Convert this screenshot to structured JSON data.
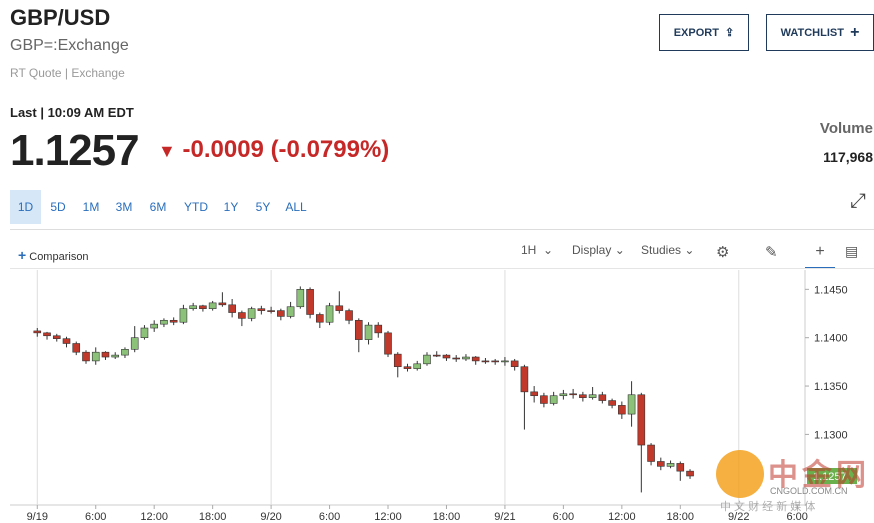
{
  "header": {
    "title": "GBP/USD",
    "symbol": "GBP=:Exchange",
    "quote_type": "RT Quote | Exchange"
  },
  "quote": {
    "last_label": "Last | 10:09 AM EDT",
    "last": 1.1257,
    "change": "-0.0009 (-0.0799%)",
    "volume_label": "Volume",
    "volume": "117,968"
  },
  "buttons": {
    "export": "EXPORT",
    "watchlist": "WATCHLIST"
  },
  "ranges": [
    "1D",
    "5D",
    "1M",
    "3M",
    "6M",
    "YTD",
    "1Y",
    "5Y",
    "ALL"
  ],
  "toolbar": {
    "comparison": "Comparison",
    "interval": "1H",
    "display": "Display",
    "studies": "Studies"
  },
  "watermark": {
    "name": "中金网",
    "site": "CNGOLD.COM.CN",
    "slogan": "中 文 财 经 新 媒 体"
  },
  "chart_data": {
    "type": "candlestick",
    "up_color": "#8cc17a",
    "down_color": "#c0392b",
    "x": [
      0,
      1,
      2,
      3,
      4,
      5,
      6,
      7,
      8,
      9,
      10,
      11,
      12,
      13,
      14,
      15,
      16,
      17,
      18,
      19,
      20,
      21,
      22,
      23,
      24,
      25,
      26,
      27,
      28,
      29,
      30,
      31,
      32,
      33,
      34,
      35,
      36,
      37,
      38,
      39,
      40,
      41,
      42,
      43,
      44,
      45,
      46,
      47,
      48,
      49,
      50,
      51,
      52,
      53,
      54,
      55,
      56,
      57,
      58,
      59,
      60,
      61,
      62,
      63,
      64,
      65,
      66,
      67
    ],
    "open": [
      1.1407,
      1.1405,
      1.1402,
      1.1399,
      1.1394,
      1.1385,
      1.1376,
      1.1385,
      1.138,
      1.1382,
      1.1388,
      1.14,
      1.141,
      1.1414,
      1.1418,
      1.1416,
      1.143,
      1.1433,
      1.143,
      1.1436,
      1.1434,
      1.1426,
      1.142,
      1.143,
      1.1428,
      1.1428,
      1.1422,
      1.1432,
      1.145,
      1.1424,
      1.1416,
      1.1433,
      1.1428,
      1.1418,
      1.1398,
      1.1413,
      1.1405,
      1.1383,
      1.137,
      1.1368,
      1.1373,
      1.1382,
      1.1382,
      1.1379,
      1.1378,
      1.138,
      1.1376,
      1.1376,
      1.1375,
      1.1376,
      1.137,
      1.1344,
      1.134,
      1.1332,
      1.134,
      1.1342,
      1.1341,
      1.1338,
      1.1341,
      1.1335,
      1.133,
      1.1321,
      1.1341,
      1.1289,
      1.1272,
      1.1267,
      1.127,
      1.1262
    ],
    "high": [
      1.141,
      1.1406,
      1.1404,
      1.1401,
      1.1396,
      1.1387,
      1.139,
      1.1386,
      1.1385,
      1.139,
      1.1412,
      1.1413,
      1.1418,
      1.142,
      1.1421,
      1.1434,
      1.1436,
      1.1434,
      1.1438,
      1.1447,
      1.144,
      1.1428,
      1.1432,
      1.1433,
      1.1432,
      1.143,
      1.1437,
      1.1453,
      1.1452,
      1.1426,
      1.1436,
      1.1448,
      1.143,
      1.142,
      1.1416,
      1.1416,
      1.1407,
      1.1385,
      1.1373,
      1.1376,
      1.1385,
      1.1386,
      1.1383,
      1.1382,
      1.1383,
      1.1381,
      1.1379,
      1.1378,
      1.138,
      1.1378,
      1.1372,
      1.135,
      1.1343,
      1.1344,
      1.1346,
      1.1347,
      1.1344,
      1.1349,
      1.1344,
      1.1337,
      1.1334,
      1.1355,
      1.1343,
      1.1291,
      1.1276,
      1.1273,
      1.1272,
      1.1264
    ],
    "low": [
      1.1401,
      1.1398,
      1.1396,
      1.139,
      1.1382,
      1.1373,
      1.1372,
      1.1377,
      1.1378,
      1.1379,
      1.1385,
      1.1398,
      1.1406,
      1.1411,
      1.1413,
      1.1414,
      1.1428,
      1.1427,
      1.1428,
      1.1432,
      1.1421,
      1.1412,
      1.1417,
      1.1424,
      1.1425,
      1.1418,
      1.142,
      1.143,
      1.142,
      1.141,
      1.1413,
      1.1425,
      1.1414,
      1.1385,
      1.1393,
      1.14,
      1.138,
      1.1359,
      1.1365,
      1.1366,
      1.1371,
      1.138,
      1.1376,
      1.1375,
      1.1376,
      1.1372,
      1.1373,
      1.1372,
      1.1371,
      1.1366,
      1.1305,
      1.1333,
      1.1328,
      1.133,
      1.1336,
      1.1337,
      1.1334,
      1.1336,
      1.1332,
      1.1327,
      1.1316,
      1.1308,
      1.124,
      1.1268,
      1.1263,
      1.1265,
      1.1252,
      1.1254
    ],
    "close": [
      1.1405,
      1.1402,
      1.1399,
      1.1394,
      1.1385,
      1.1376,
      1.1385,
      1.138,
      1.1382,
      1.1388,
      1.14,
      1.141,
      1.1414,
      1.1418,
      1.1416,
      1.143,
      1.1433,
      1.143,
      1.1436,
      1.1434,
      1.1426,
      1.142,
      1.143,
      1.1428,
      1.1428,
      1.1422,
      1.1432,
      1.145,
      1.1424,
      1.1416,
      1.1433,
      1.1428,
      1.1418,
      1.1398,
      1.1413,
      1.1405,
      1.1383,
      1.137,
      1.1368,
      1.1373,
      1.1382,
      1.1382,
      1.1379,
      1.1378,
      1.138,
      1.1376,
      1.1376,
      1.1375,
      1.1376,
      1.137,
      1.1344,
      1.134,
      1.1332,
      1.134,
      1.1342,
      1.1341,
      1.1338,
      1.1341,
      1.1335,
      1.133,
      1.1321,
      1.1341,
      1.1289,
      1.1272,
      1.1267,
      1.127,
      1.1262,
      1.1257
    ],
    "xlim": [
      -2.8,
      78.8
    ],
    "xticks": [
      {
        "value": 0,
        "label": "9/19"
      },
      {
        "value": 6,
        "label": "6:00"
      },
      {
        "value": 12,
        "label": "12:00"
      },
      {
        "value": 18,
        "label": "18:00"
      },
      {
        "value": 24,
        "label": "9/20"
      },
      {
        "value": 30,
        "label": "6:00"
      },
      {
        "value": 36,
        "label": "12:00"
      },
      {
        "value": 42,
        "label": "18:00"
      },
      {
        "value": 48,
        "label": "9/21"
      },
      {
        "value": 54,
        "label": "6:00"
      },
      {
        "value": 60,
        "label": "12:00"
      },
      {
        "value": 66,
        "label": "18:00"
      },
      {
        "value": 72,
        "label": "9/22"
      },
      {
        "value": 78,
        "label": "6:00"
      }
    ],
    "ylim": [
      1.1227,
      1.147
    ],
    "yticks": [
      {
        "value": 1.13,
        "label": "1.1300"
      },
      {
        "value": 1.135,
        "label": "1.1350"
      },
      {
        "value": 1.14,
        "label": "1.1400"
      },
      {
        "value": 1.145,
        "label": "1.1450"
      }
    ]
  }
}
